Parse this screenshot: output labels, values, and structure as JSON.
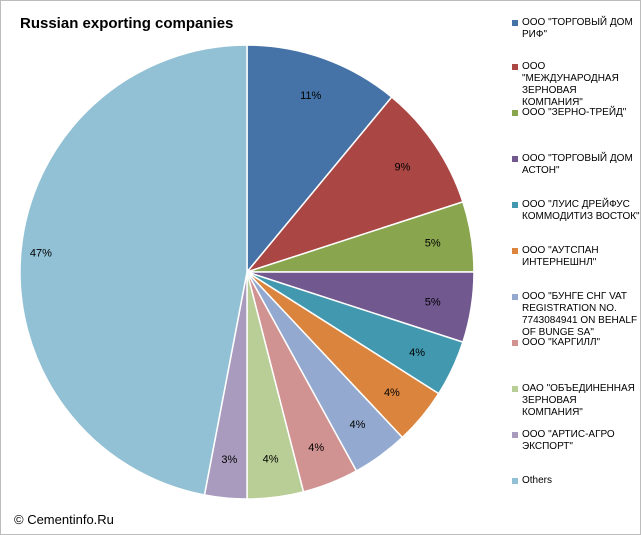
{
  "chart_data": {
    "type": "pie",
    "title": "Russian exporting companies",
    "start": "12 o'clock",
    "direction": "clockwise",
    "legend_position": "right",
    "slices": [
      {
        "name": "ООО \"ТОРГОВЫЙ ДОМ РИФ\"",
        "value": 11,
        "label": "11%",
        "color": "#4572a7"
      },
      {
        "name": "ООО \"МЕЖДУНАРОДНАЯ ЗЕРНОВАЯ КОМПАНИЯ\"",
        "value": 9,
        "label": "9%",
        "color": "#aa4643"
      },
      {
        "name": "ООО \"ЗЕРНО-ТРЕЙД\"",
        "value": 5,
        "label": "5%",
        "color": "#89a54e"
      },
      {
        "name": "ООО \"ТОРГОВЫЙ ДОМ АСТОН\"",
        "value": 5,
        "label": "5%",
        "color": "#71588f"
      },
      {
        "name": "ООО \"ЛУИС ДРЕЙФУС КОММОДИТИЗ ВОСТОК\"",
        "value": 4,
        "label": "4%",
        "color": "#4198af"
      },
      {
        "name": "ООО \"АУТСПАН ИНТЕРНЕШНЛ\"",
        "value": 4,
        "label": "4%",
        "color": "#db843d"
      },
      {
        "name": "ООО \"БУНГЕ СНГ VAT REGISTRATION NO. 7743084941 ON BEHALF OF BUNGE SA\"",
        "value": 4,
        "label": "4%",
        "color": "#93a9cf"
      },
      {
        "name": "ООО \"КАРГИЛЛ\"",
        "value": 4,
        "label": "4%",
        "color": "#d19392"
      },
      {
        "name": "ОАО \"ОБЪЕДИНЕННАЯ ЗЕРНОВАЯ КОМПАНИЯ\"",
        "value": 4,
        "label": "4%",
        "color": "#b9cd96"
      },
      {
        "name": "ООО \"АРТИС-АГРО ЭКСПОРТ\"",
        "value": 3,
        "label": "3%",
        "color": "#a99bbd"
      },
      {
        "name": "Others",
        "value": 47,
        "label": "47%",
        "color": "#92c0d4"
      }
    ]
  },
  "credit": "© Cementinfo.Ru"
}
